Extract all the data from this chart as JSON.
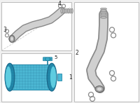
{
  "bg_color": "#f0f0f0",
  "box_edge": "#bbbbbb",
  "box_face": "#ffffff",
  "ic_fill": "#4db8d4",
  "ic_edge": "#2288aa",
  "ic_dark": "#1a6688",
  "hose_fill": "#d0d0d0",
  "hose_edge": "#888888",
  "ring_fill": "#cccccc",
  "ring_edge": "#888888",
  "label_color": "#222222",
  "dash_color": "#cccccc",
  "sensor_fill": "#3aaac8",
  "sensor_edge": "#1a7a9a"
}
